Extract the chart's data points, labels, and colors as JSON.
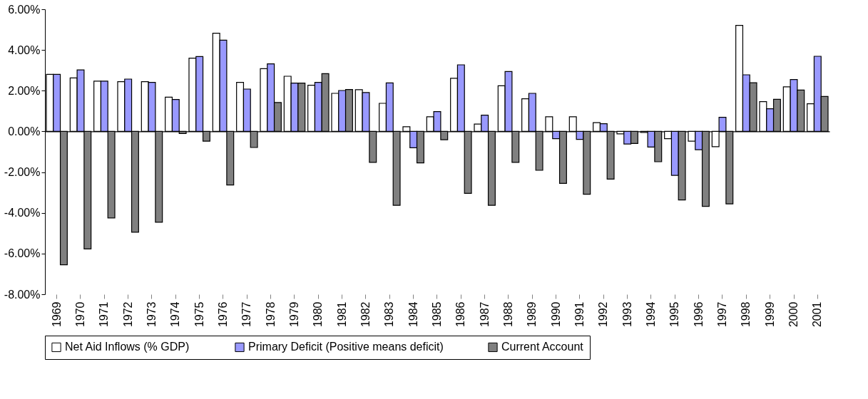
{
  "chart_data": {
    "type": "bar",
    "categories": [
      "1969",
      "1970",
      "1971",
      "1972",
      "1973",
      "1974",
      "1975",
      "1976",
      "1977",
      "1978",
      "1979",
      "1980",
      "1981",
      "1982",
      "1983",
      "1984",
      "1985",
      "1986",
      "1987",
      "1988",
      "1989",
      "1990",
      "1991",
      "1992",
      "1993",
      "1994",
      "1995",
      "1996",
      "1997",
      "1998",
      "1999",
      "2000",
      "2001"
    ],
    "series": [
      {
        "name": "Net Aid Inflows (% GDP)",
        "color": "#ffffff",
        "values": [
          2.8,
          2.63,
          2.47,
          2.44,
          2.44,
          1.68,
          3.6,
          4.82,
          2.41,
          3.08,
          2.71,
          2.27,
          1.87,
          2.05,
          1.38,
          0.23,
          0.72,
          2.61,
          0.36,
          2.24,
          1.6,
          0.72,
          0.72,
          0.43,
          -0.12,
          -0.05,
          -0.36,
          -0.48,
          -0.75,
          5.21,
          1.46,
          2.19,
          1.36
        ]
      },
      {
        "name": "Primary Deficit (Positive means deficit)",
        "color": "#9999ff",
        "values": [
          2.8,
          3.02,
          2.47,
          2.57,
          2.41,
          1.57,
          3.68,
          4.48,
          2.08,
          3.32,
          2.37,
          2.41,
          2.01,
          1.91,
          2.38,
          -0.8,
          0.97,
          3.27,
          0.8,
          2.94,
          1.87,
          -0.36,
          -0.39,
          0.38,
          -0.62,
          -0.77,
          -2.16,
          -0.9,
          0.69,
          2.78,
          1.11,
          2.55,
          3.69
        ]
      },
      {
        "name": "Current Account",
        "color": "#808080",
        "values": [
          -6.55,
          -5.77,
          -4.25,
          -4.95,
          -4.46,
          -0.1,
          -0.48,
          -2.63,
          -0.79,
          1.42,
          2.37,
          2.84,
          2.06,
          -1.52,
          -3.63,
          -1.55,
          -0.41,
          -3.04,
          -3.63,
          -1.52,
          -1.91,
          -2.55,
          -3.09,
          -2.34,
          -0.59,
          -1.49,
          -3.37,
          -3.68,
          -3.56,
          2.39,
          1.58,
          2.03,
          1.72
        ]
      }
    ],
    "ylim": [
      -8,
      6
    ],
    "yticks": [
      {
        "value": -8,
        "label": "-8.00%"
      },
      {
        "value": -6,
        "label": "-6.00%"
      },
      {
        "value": -4,
        "label": "-4.00%"
      },
      {
        "value": -2,
        "label": "-2.00%"
      },
      {
        "value": 0,
        "label": "0.00%"
      },
      {
        "value": 2,
        "label": "2.00%"
      },
      {
        "value": 4,
        "label": "4.00%"
      },
      {
        "value": 6,
        "label": "6.00%"
      }
    ],
    "legend": "bottom"
  }
}
